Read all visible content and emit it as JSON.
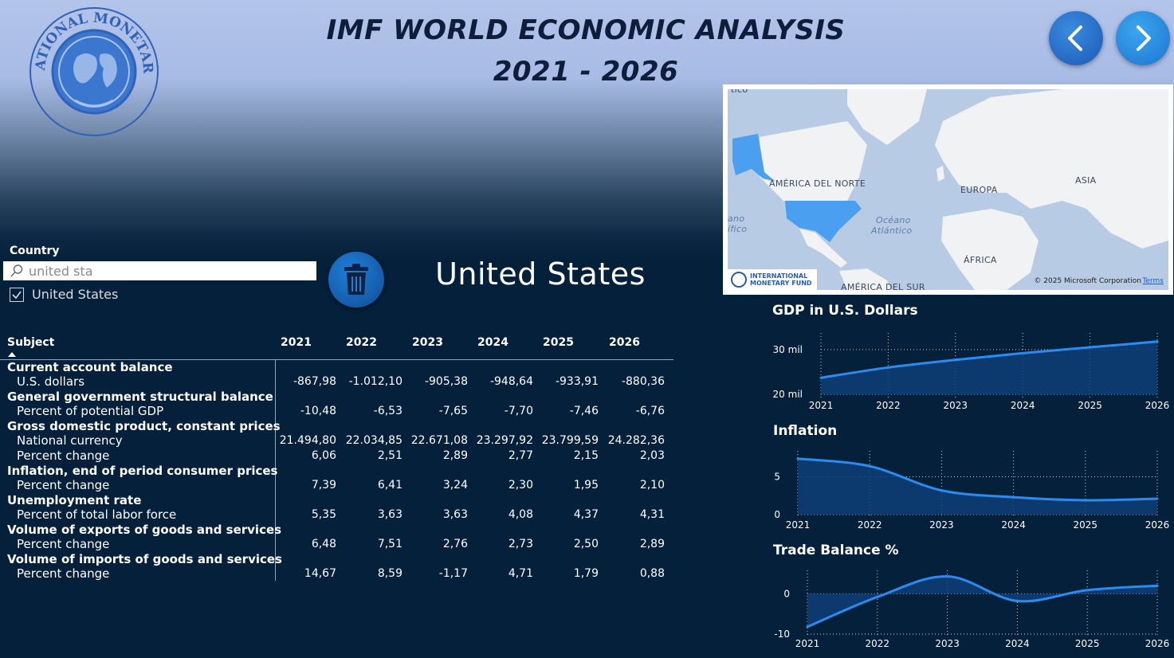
{
  "header": {
    "title_line1": "IMF WORLD ECONOMIC ANALYSIS",
    "title_line2": "2021 - 2026",
    "logo_text": "INTERNATIONAL MONETARY FUND",
    "prev_icon": "chevron-left-icon",
    "next_icon": "chevron-right-icon"
  },
  "map": {
    "labels": {
      "north_america": "AMÉRICA DEL NORTE",
      "europe": "EUROPA",
      "asia": "ASIA",
      "africa": "ÁFRICA",
      "south_america": "AMÉRICA DEL SUR",
      "atlantic_1": "Océano",
      "atlantic_2": "Atlántico",
      "pacific_1": "ano",
      "pacific_2": "ífico",
      "top_fragment": "tico"
    },
    "badge_line1": "INTERNATIONAL",
    "badge_line2": "MONETARY FUND",
    "copyright": "© 2025 Microsoft Corporation",
    "terms": "Terms",
    "highlight_color": "#4a9ff0"
  },
  "filter": {
    "label": "Country",
    "search_value": "united sta",
    "checked_option": "United States"
  },
  "selected_country": "United States",
  "table": {
    "header_subject": "Subject",
    "years": [
      "2021",
      "2022",
      "2023",
      "2024",
      "2025",
      "2026"
    ],
    "groups": [
      {
        "subject": "Current account balance",
        "rows": [
          {
            "unit": "U.S. dollars",
            "values": [
              "-867,98",
              "-1.012,10",
              "-905,38",
              "-948,64",
              "-933,91",
              "-880,36"
            ]
          }
        ]
      },
      {
        "subject": "General government structural balance",
        "rows": [
          {
            "unit": "Percent of potential GDP",
            "values": [
              "-10,48",
              "-6,53",
              "-7,65",
              "-7,70",
              "-7,46",
              "-6,76"
            ]
          }
        ]
      },
      {
        "subject": "Gross domestic product, constant prices",
        "rows": [
          {
            "unit": "National currency",
            "values": [
              "21.494,80",
              "22.034,85",
              "22.671,08",
              "23.297,92",
              "23.799,59",
              "24.282,36"
            ]
          },
          {
            "unit": "Percent change",
            "values": [
              "6,06",
              "2,51",
              "2,89",
              "2,77",
              "2,15",
              "2,03"
            ]
          }
        ]
      },
      {
        "subject": "Inflation, end of period consumer prices",
        "rows": [
          {
            "unit": "Percent change",
            "values": [
              "7,39",
              "6,41",
              "3,24",
              "2,30",
              "1,95",
              "2,10"
            ]
          }
        ]
      },
      {
        "subject": "Unemployment rate",
        "rows": [
          {
            "unit": "Percent of total labor force",
            "values": [
              "5,35",
              "3,63",
              "3,63",
              "4,08",
              "4,37",
              "4,31"
            ]
          }
        ]
      },
      {
        "subject": "Volume of exports of goods and services",
        "rows": [
          {
            "unit": "Percent change",
            "values": [
              "6,48",
              "7,51",
              "2,76",
              "2,73",
              "2,50",
              "2,89"
            ]
          }
        ]
      },
      {
        "subject": "Volume of imports of goods and services",
        "rows": [
          {
            "unit": "Percent change",
            "values": [
              "14,67",
              "8,59",
              "-1,17",
              "4,71",
              "1,79",
              "0,88"
            ]
          }
        ]
      }
    ]
  },
  "chart_data": [
    {
      "type": "area",
      "title": "GDP in U.S. Dollars",
      "x": [
        "2021",
        "2022",
        "2023",
        "2024",
        "2025",
        "2026"
      ],
      "values": [
        23.7,
        26.0,
        27.7,
        29.2,
        30.5,
        31.8
      ],
      "unit": "mil",
      "yticks": [
        {
          "value": 20,
          "label": "20 mil"
        },
        {
          "value": 30,
          "label": "30 mil"
        }
      ],
      "ylim": [
        20,
        33
      ],
      "grid": true,
      "color": "#2a8cf0"
    },
    {
      "type": "area",
      "title": "Inflation",
      "x": [
        "2021",
        "2022",
        "2023",
        "2024",
        "2025",
        "2026"
      ],
      "values": [
        7.4,
        6.4,
        3.2,
        2.3,
        1.9,
        2.1
      ],
      "yticks": [
        {
          "value": 0,
          "label": "0"
        },
        {
          "value": 5,
          "label": "5"
        }
      ],
      "ylim": [
        0,
        8
      ],
      "grid": true,
      "color": "#2a8cf0"
    },
    {
      "type": "area",
      "title": "Trade Balance %",
      "x": [
        "2021",
        "2022",
        "2023",
        "2024",
        "2025",
        "2026"
      ],
      "values": [
        -8.2,
        -0.8,
        4.3,
        -1.8,
        0.9,
        2.0
      ],
      "yticks": [
        {
          "value": 0,
          "label": "0"
        },
        {
          "value": -10,
          "label": "-10"
        }
      ],
      "ylim": [
        -10,
        5
      ],
      "grid": true,
      "color": "#2a8cf0"
    }
  ]
}
